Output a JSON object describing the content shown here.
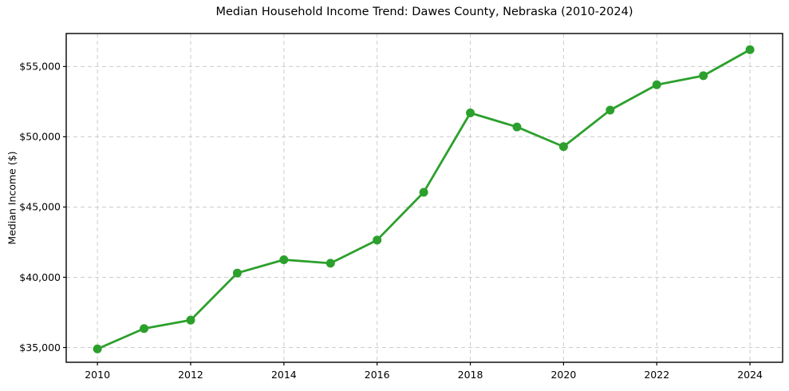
{
  "figure": {
    "background": "#ffffff",
    "border_color": "#000000",
    "grid_color": "#cccccc"
  },
  "chart_data": {
    "type": "line",
    "title": "Median Household Income Trend: Dawes County, Nebraska (2010-2024)",
    "xlabel": "",
    "ylabel": "Median Income ($)",
    "x": [
      2010,
      2011,
      2012,
      2013,
      2014,
      2015,
      2016,
      2017,
      2018,
      2019,
      2020,
      2021,
      2022,
      2023,
      2024
    ],
    "series": [
      {
        "name": "Median Household Income",
        "color": "#2ca02c",
        "marker": "circle",
        "marker_radius": 5.5,
        "line_width": 2.8,
        "values": [
          34900,
          36350,
          36950,
          40300,
          41250,
          41000,
          42650,
          46050,
          51700,
          50700,
          49300,
          51900,
          53700,
          54350,
          56200
        ]
      }
    ],
    "x_ticks": {
      "values": [
        2010,
        2012,
        2014,
        2016,
        2018,
        2020,
        2022,
        2024
      ],
      "labels": [
        "2010",
        "2012",
        "2014",
        "2016",
        "2018",
        "2020",
        "2022",
        "2024"
      ]
    },
    "y_ticks": {
      "values": [
        35000,
        40000,
        45000,
        50000,
        55000
      ],
      "labels": [
        "$35,000",
        "$40,000",
        "$45,000",
        "$50,000",
        "$55,000"
      ]
    },
    "xlim": [
      2009.33,
      2024.7
    ],
    "ylim": [
      33950,
      57350
    ],
    "grid": {
      "visible": true,
      "style": "dashed",
      "on_x_ticks": true,
      "on_y_ticks": true
    },
    "legend": "none"
  }
}
